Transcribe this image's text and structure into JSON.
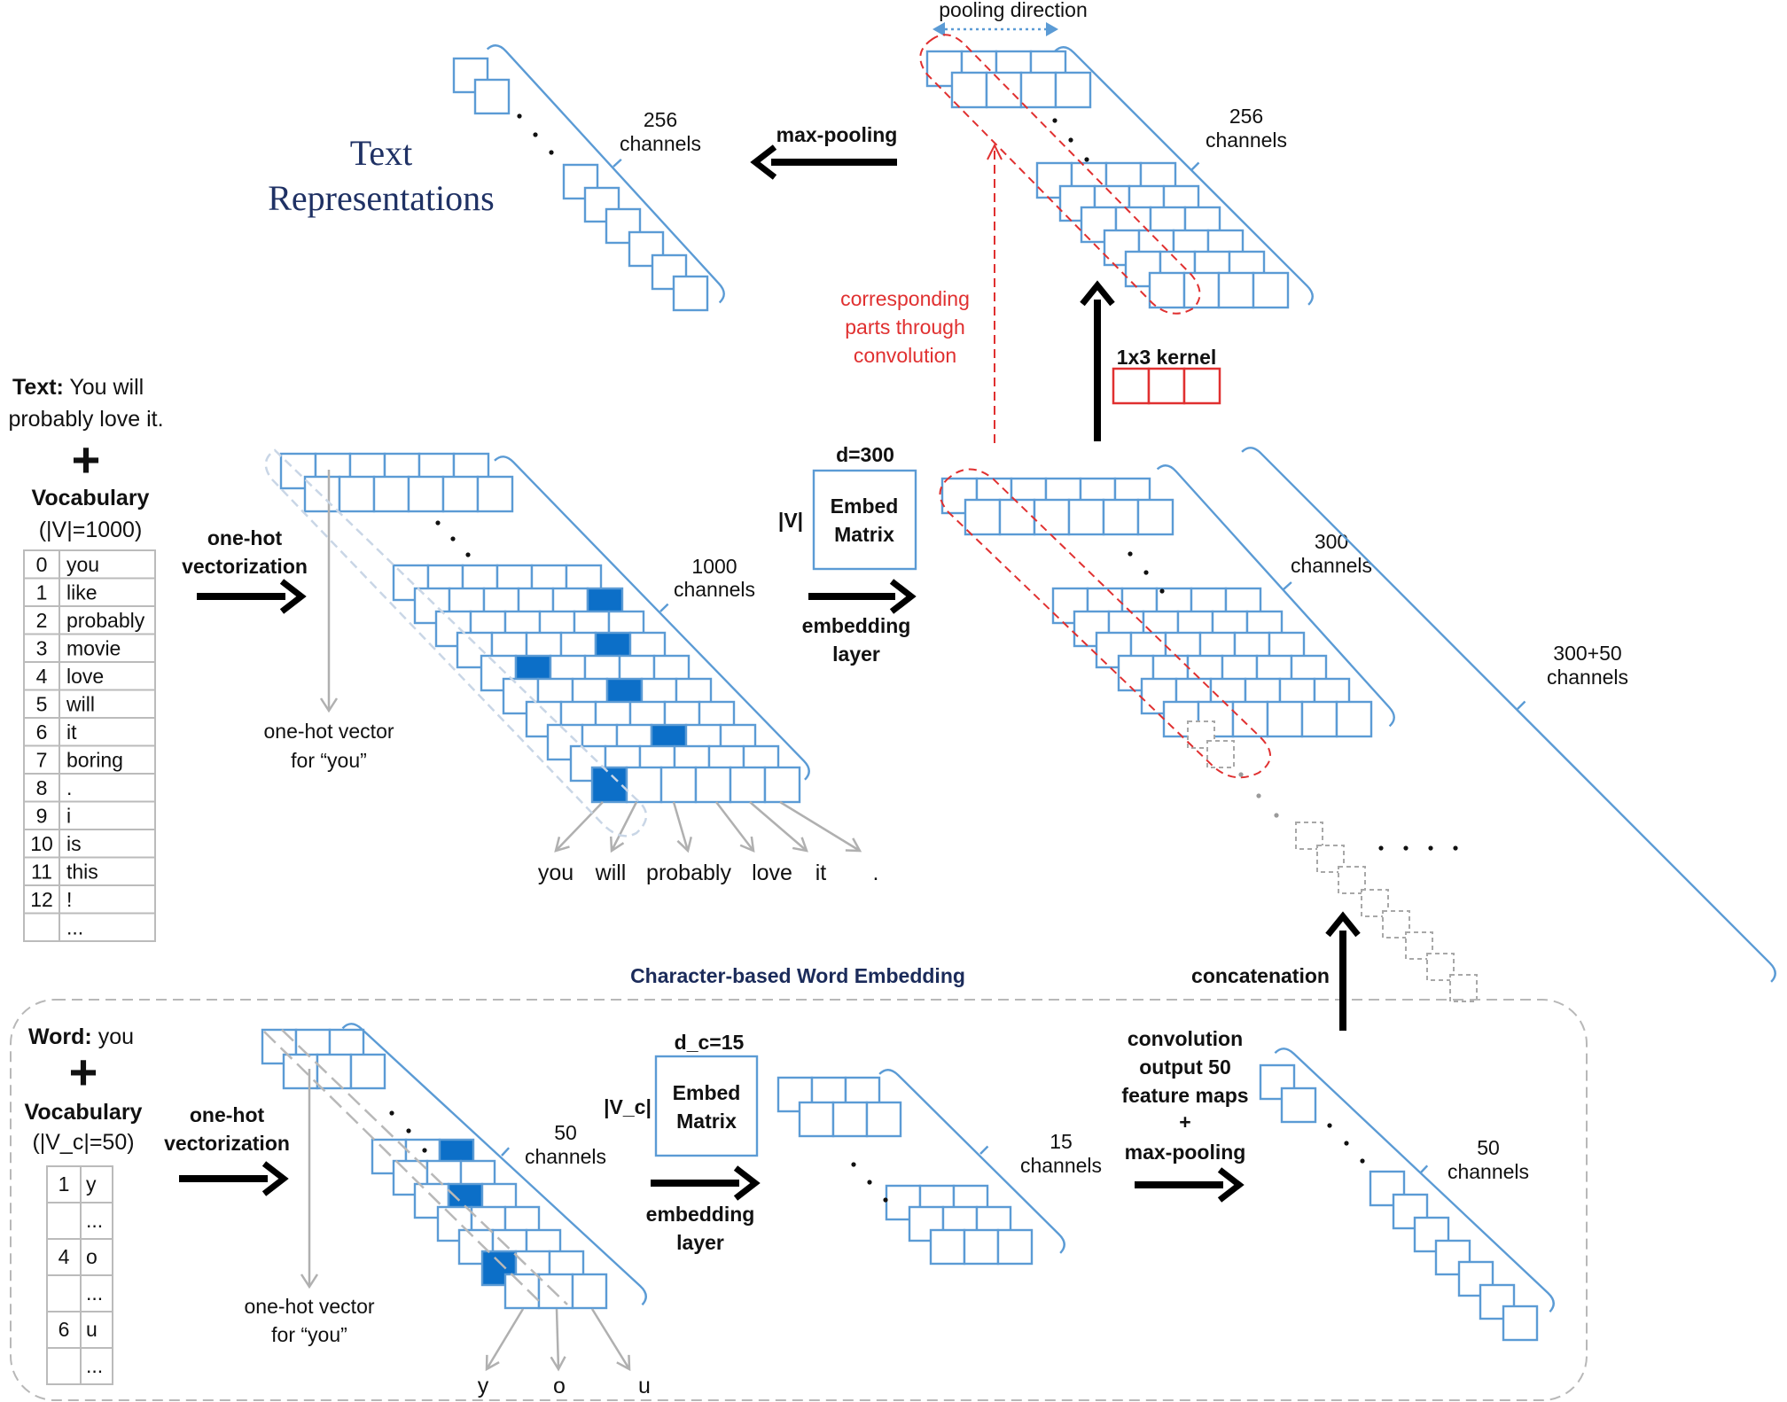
{
  "title": {
    "line1": "Text",
    "line2": "Representations"
  },
  "input": {
    "text_label": "Text:",
    "text_value_1": " You will",
    "text_value_2": "probably love it.",
    "plus": "+",
    "vocab_label": "Vocabulary",
    "vocab_size": "(|V|=1000)"
  },
  "vocab_rows": [
    [
      "0",
      "you"
    ],
    [
      "1",
      "like"
    ],
    [
      "2",
      "probably"
    ],
    [
      "3",
      "movie"
    ],
    [
      "4",
      "love"
    ],
    [
      "5",
      "will"
    ],
    [
      "6",
      "it"
    ],
    [
      "7",
      "boring"
    ],
    [
      "8",
      "."
    ],
    [
      "9",
      "i"
    ],
    [
      "10",
      "is"
    ],
    [
      "11",
      "this"
    ],
    [
      "12",
      "!"
    ],
    [
      "",
      "..."
    ]
  ],
  "word_stage": {
    "onehot_label_1": "one-hot",
    "onehot_label_2": "vectorization",
    "onehot_vec_1": "one-hot vector",
    "onehot_vec_2": "for “you”",
    "channels_num": "1000",
    "channels_word": "channels",
    "words": [
      "you",
      "will",
      "probably",
      "love",
      "it",
      "."
    ]
  },
  "embedding": {
    "d": "d=300",
    "v": "|V|",
    "matrix_1": "Embed",
    "matrix_2": "Matrix",
    "layer_1": "embedding",
    "layer_2": "layer",
    "channels_num": "300",
    "channels_word": "channels",
    "concat_num": "300+50",
    "concat_word": "channels"
  },
  "conv": {
    "kernel": "1x3 kernel",
    "corr_1": "corresponding",
    "corr_2": "parts through",
    "corr_3": "convolution",
    "pooling_dir": "pooling direction",
    "channels_num": "256",
    "channels_word": "channels"
  },
  "pool": {
    "label": "max-pooling",
    "channels_num": "256",
    "channels_word": "channels"
  },
  "char": {
    "section_title": "Character-based Word Embedding",
    "word_label": "Word:",
    "word_value": " you",
    "plus": "+",
    "vocab_label": "Vocabulary",
    "vocab_size": "(|V_c|=50)",
    "vocab_rows": [
      [
        "1",
        "y"
      ],
      [
        "",
        "..."
      ],
      [
        "4",
        "o"
      ],
      [
        "",
        "..."
      ],
      [
        "6",
        "u"
      ],
      [
        "",
        "..."
      ]
    ],
    "onehot_label_1": "one-hot",
    "onehot_label_2": "vectorization",
    "onehot_vec_1": "one-hot vector",
    "onehot_vec_2": "for “you”",
    "channels50_num": "50",
    "channels50_word": "channels",
    "letters": [
      "y",
      "o",
      "u"
    ],
    "dc": "d_c=15",
    "vc": "|V_c|",
    "matrix_1": "Embed",
    "matrix_2": "Matrix",
    "layer_1": "embedding",
    "layer_2": "layer",
    "channels15_num": "15",
    "channels15_word": "channels",
    "conv_1": "convolution",
    "conv_2": "output 50",
    "conv_3": "feature maps",
    "conv_4": "+",
    "conv_5": "max-pooling",
    "out_num": "50",
    "out_word": "channels",
    "concat": "concatenation"
  },
  "colors": {
    "cell_stroke": "#5b9bd5",
    "cell_fill": "#0c6fc8",
    "red": "#e03030",
    "navy": "#1b2b5a"
  }
}
